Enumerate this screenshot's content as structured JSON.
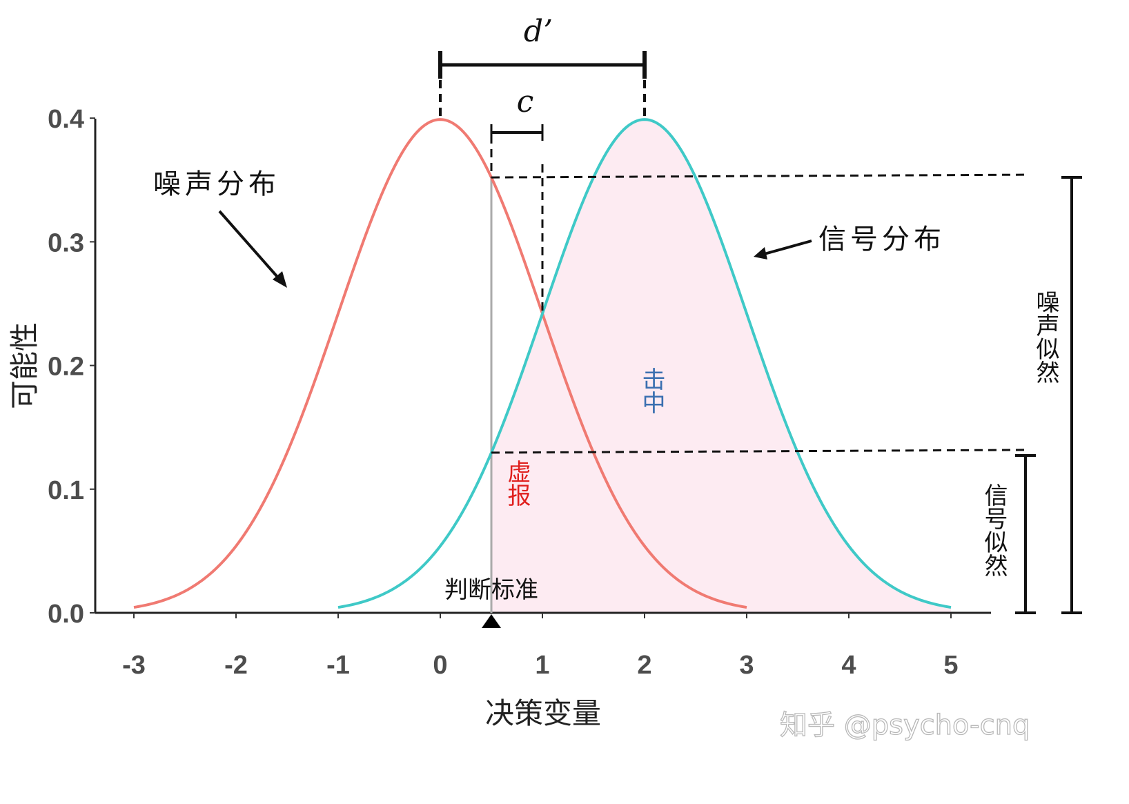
{
  "chart_data": {
    "type": "line",
    "xlabel": "决策变量",
    "ylabel": "可能性",
    "xlim": [
      -3,
      5
    ],
    "ylim": [
      0,
      0.4
    ],
    "x_ticks": [
      "-3",
      "-2",
      "-1",
      "0",
      "1",
      "2",
      "3",
      "4",
      "5"
    ],
    "y_ticks": [
      "0.0",
      "0.1",
      "0.2",
      "0.3",
      "0.4"
    ],
    "series": [
      {
        "name": "噪声分布",
        "distribution": "normal",
        "mean": 0,
        "sd": 1,
        "x_range": [
          -3,
          3
        ],
        "color": "#f07a72"
      },
      {
        "name": "信号分布",
        "distribution": "normal",
        "mean": 2,
        "sd": 1,
        "x_range": [
          -1,
          5
        ],
        "color": "#3fc9c7"
      }
    ],
    "criterion": {
      "x": 0.5,
      "label": "判断标准"
    },
    "shaded_region": {
      "from": 0.5,
      "to": 5,
      "color": "#fdebf2"
    },
    "annotations": {
      "d_prime": {
        "symbol": "d’",
        "from": 0,
        "to": 2
      },
      "c": {
        "symbol": "c",
        "from": 0.5,
        "to": 1
      },
      "hit": "击中",
      "false_alarm": "虚报",
      "noise_likelihood": "噪声似然",
      "signal_likelihood": "信号似然"
    },
    "colors": {
      "hit_text": "#3a6fb0",
      "false_alarm_text": "#e0201e"
    }
  },
  "watermark": "知乎 @psycho-cnq"
}
